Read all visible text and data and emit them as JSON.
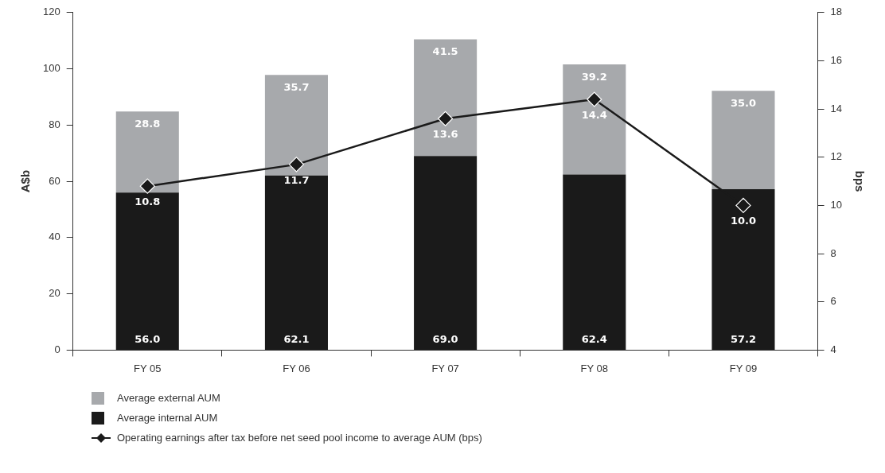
{
  "chart_data": {
    "type": "bar",
    "stacked": true,
    "categories": [
      "FY 05",
      "FY 06",
      "FY 07",
      "FY 08",
      "FY 09"
    ],
    "ylabel": "A$b",
    "y2label": "bps",
    "ylim": [
      0,
      120
    ],
    "yticks": [
      0,
      20,
      40,
      60,
      80,
      100,
      120
    ],
    "y2lim": [
      4,
      18
    ],
    "y2ticks": [
      4,
      6,
      8,
      10,
      12,
      14,
      16,
      18
    ],
    "grid": false,
    "legend": "bottom left",
    "series": [
      {
        "name": "Average internal AUM",
        "color": "#1a1a1a",
        "values": [
          56.0,
          62.1,
          69.0,
          62.4,
          57.2
        ],
        "value_labels": [
          "56.0",
          "62.1",
          "69.0",
          "62.4",
          "57.2"
        ]
      },
      {
        "name": "Average external AUM",
        "color": "#a7a9ac",
        "values": [
          28.8,
          35.7,
          41.5,
          39.2,
          35.0
        ],
        "value_labels": [
          "28.8",
          "35.7",
          "41.5",
          "39.2",
          "35.0"
        ]
      },
      {
        "name": "Operating earnings after tax before net seed pool income to average AUM (bps)",
        "type": "line",
        "axis": "y2",
        "color": "#1a1a1a",
        "marker": "diamond",
        "values": [
          10.8,
          11.7,
          13.6,
          14.4,
          10.0
        ],
        "value_labels": [
          "10.8",
          "11.7",
          "13.6",
          "14.4",
          "10.0"
        ]
      }
    ]
  }
}
